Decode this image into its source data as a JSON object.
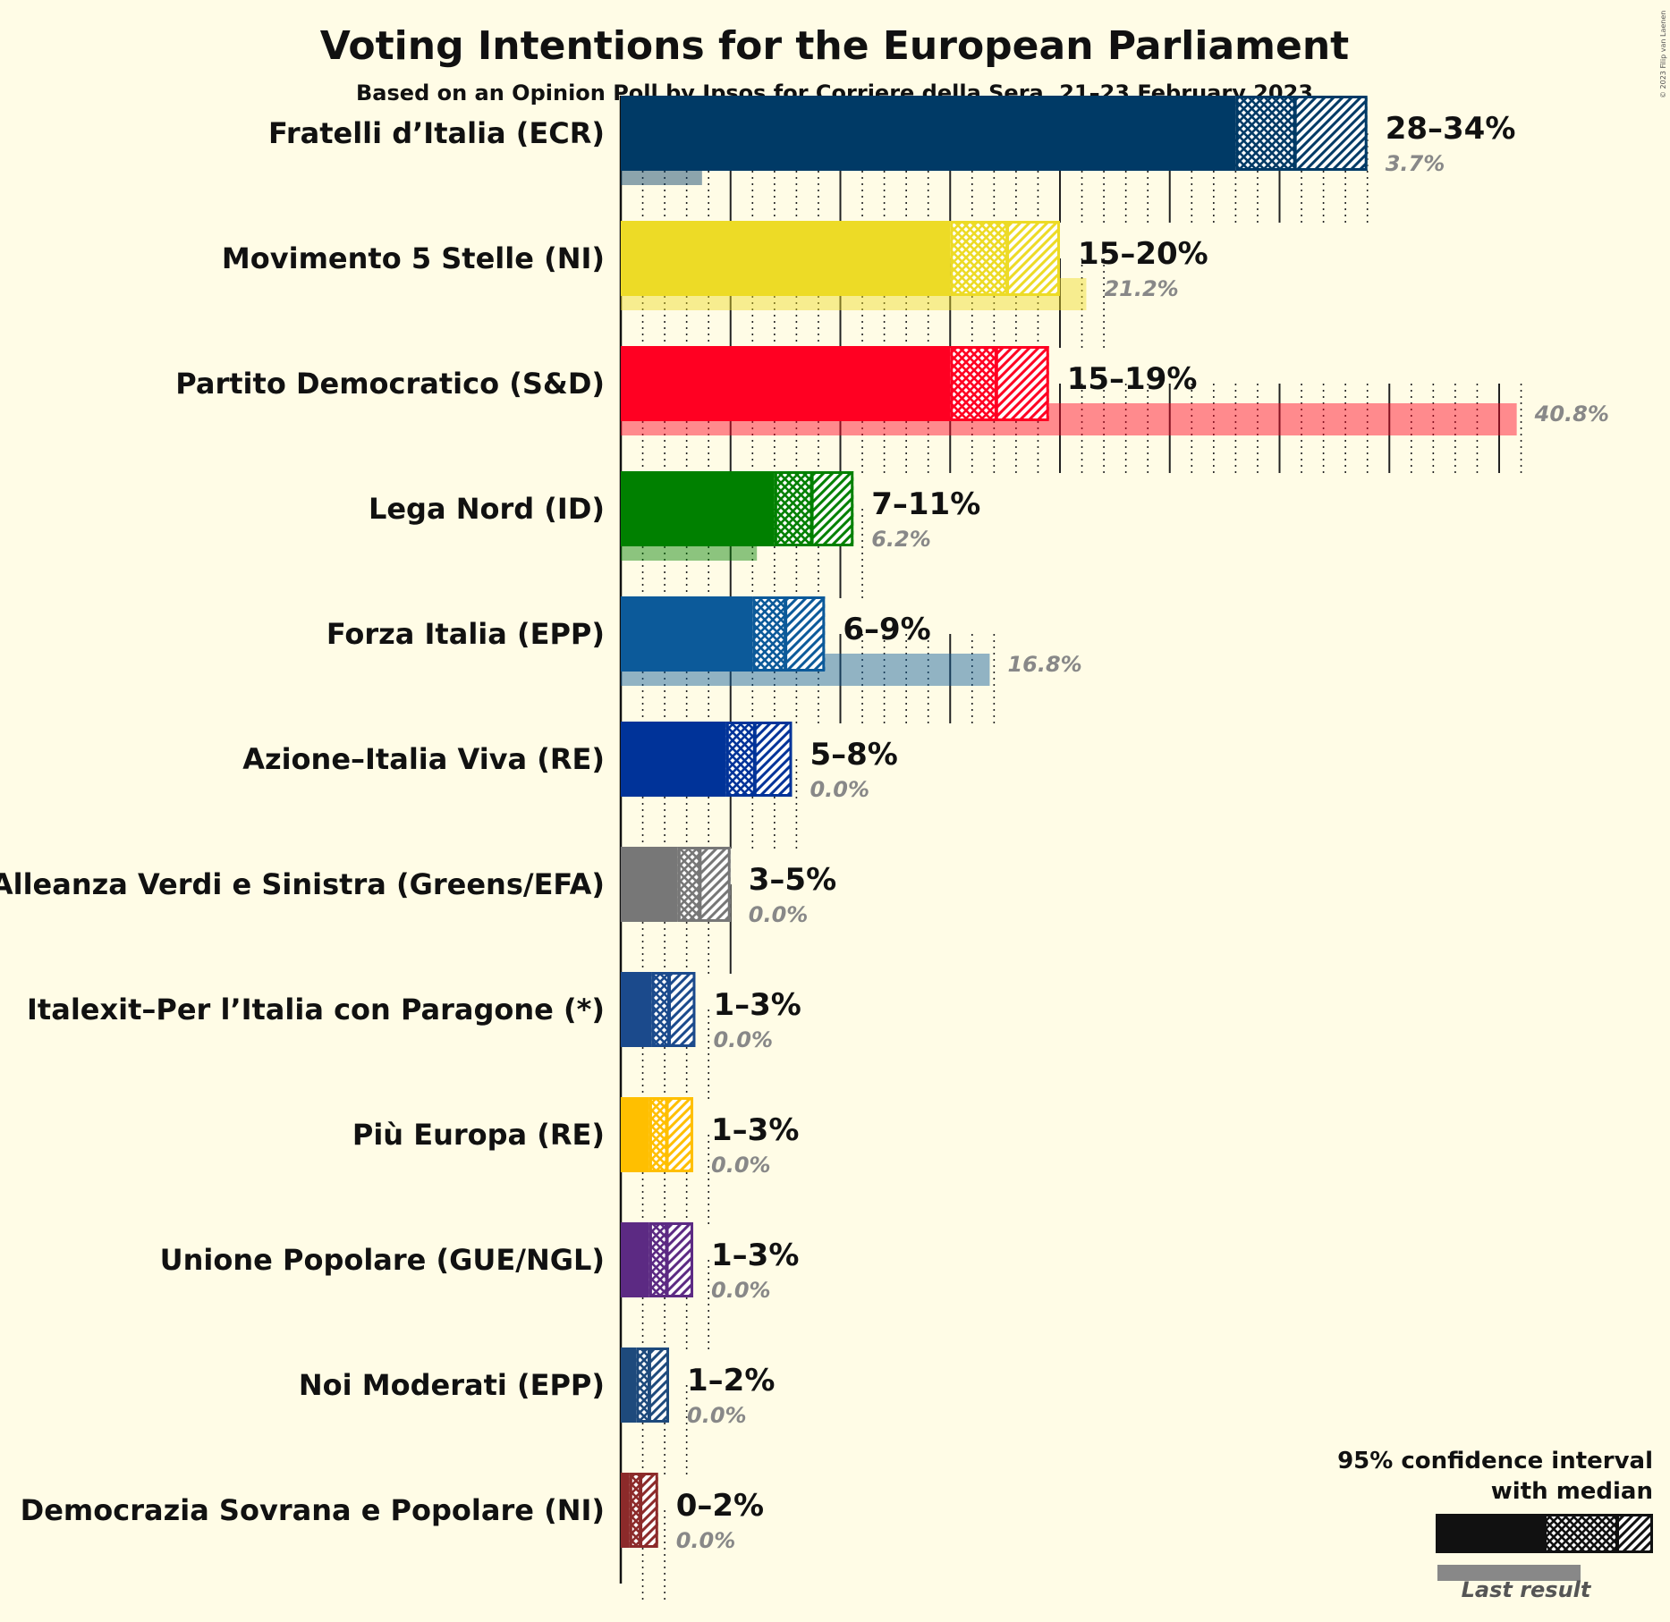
{
  "chart_data": {
    "type": "bar",
    "title": "Voting Intentions for the European Parliament",
    "subtitle": "Based on an Opinion Poll by Ipsos for Corriere della Sera, 21–23 February 2023",
    "copyright": "© 2023 Filip van Laenen",
    "legend": {
      "title_line1": "95% confidence interval",
      "title_line2": "with median",
      "last_label": "Last result",
      "position": "bottom-right"
    },
    "x_axis": {
      "unit": "%",
      "major_gridlines_every": 5,
      "minor_gridlines_every": 1
    },
    "parties": [
      {
        "name": "Fratelli d’Italia (ECR)",
        "color": "#003A66",
        "low": 28,
        "median": 30.7,
        "high": 34,
        "range_label": "28–34%",
        "last": 3.7,
        "last_label": "3.7%"
      },
      {
        "name": "Movimento 5 Stelle (NI)",
        "color": "#EDDB26",
        "low": 15,
        "median": 17.6,
        "high": 20,
        "range_label": "15–20%",
        "last": 21.2,
        "last_label": "21.2%"
      },
      {
        "name": "Partito Democratico (S&D)",
        "color": "#FF0022",
        "low": 15,
        "median": 17.1,
        "high": 19.5,
        "range_label": "15–19%",
        "last": 40.8,
        "last_label": "40.8%"
      },
      {
        "name": "Lega Nord (ID)",
        "color": "#008000",
        "low": 7,
        "median": 8.7,
        "high": 10.6,
        "range_label": "7–11%",
        "last": 6.2,
        "last_label": "6.2%"
      },
      {
        "name": "Forza Italia (EPP)",
        "color": "#0C5A9A",
        "low": 6,
        "median": 7.5,
        "high": 9.3,
        "range_label": "6–9%",
        "last": 16.8,
        "last_label": "16.8%"
      },
      {
        "name": "Azione–Italia Viva (RE)",
        "color": "#003399",
        "low": 4.8,
        "median": 6.1,
        "high": 7.8,
        "range_label": "5–8%",
        "last": 0.0,
        "last_label": "0.0%"
      },
      {
        "name": "Alleanza Verdi e Sinistra (Greens/EFA)",
        "color": "#777777",
        "low": 2.6,
        "median": 3.6,
        "high": 5.0,
        "range_label": "3–5%",
        "last": 0.0,
        "last_label": "0.0%"
      },
      {
        "name": "Italexit–Per l’Italia con Paragone (*)",
        "color": "#1B4A8C",
        "low": 1.4,
        "median": 2.2,
        "high": 3.4,
        "range_label": "1–3%",
        "last": 0.0,
        "last_label": "0.0%"
      },
      {
        "name": "Più Europa (RE)",
        "color": "#FFBF00",
        "low": 1.3,
        "median": 2.1,
        "high": 3.3,
        "range_label": "1–3%",
        "last": 0.0,
        "last_label": "0.0%"
      },
      {
        "name": "Unione Popolare (GUE/NGL)",
        "color": "#5C2A83",
        "low": 1.3,
        "median": 2.1,
        "high": 3.3,
        "range_label": "1–3%",
        "last": 0.0,
        "last_label": "0.0%"
      },
      {
        "name": "Noi Moderati (EPP)",
        "color": "#1E4A7C",
        "low": 0.7,
        "median": 1.3,
        "high": 2.2,
        "range_label": "1–2%",
        "last": 0.0,
        "last_label": "0.0%"
      },
      {
        "name": "Democrazia Sovrana e Popolare (NI)",
        "color": "#8C2A2A",
        "low": 0.4,
        "median": 0.9,
        "high": 1.7,
        "range_label": "0–2%",
        "last": 0.0,
        "last_label": "0.0%"
      }
    ]
  }
}
